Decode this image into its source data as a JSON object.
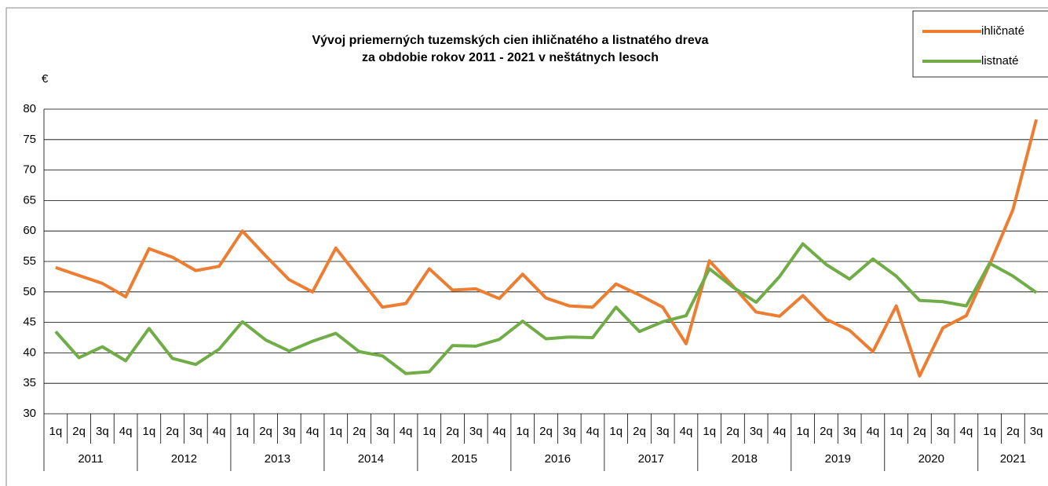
{
  "chart_data": {
    "type": "line",
    "title": [
      "Vývoj priemerných tuzemských cien ihličnatého a listnatého dreva",
      "za obdobie rokov 2011 - 2021 v neštátnych lesoch"
    ],
    "y_label": "€",
    "categories": [
      "1q",
      "2q",
      "3q",
      "4q",
      "1q",
      "2q",
      "3q",
      "4q",
      "1q",
      "2q",
      "3q",
      "4q",
      "1q",
      "2q",
      "3q",
      "4q",
      "1q",
      "2q",
      "3q",
      "4q",
      "1q",
      "2q",
      "3q",
      "4q",
      "1q",
      "2q",
      "3q",
      "4q",
      "1q",
      "2q",
      "3q",
      "4q",
      "1q",
      "2q",
      "3q",
      "4q",
      "1q",
      "2q",
      "3q",
      "4q",
      "1q",
      "2q",
      "3q"
    ],
    "years": [
      {
        "label": "2011",
        "quarters": 4
      },
      {
        "label": "2012",
        "quarters": 4
      },
      {
        "label": "2013",
        "quarters": 4
      },
      {
        "label": "2014",
        "quarters": 4
      },
      {
        "label": "2015",
        "quarters": 4
      },
      {
        "label": "2016",
        "quarters": 4
      },
      {
        "label": "2017",
        "quarters": 4
      },
      {
        "label": "2018",
        "quarters": 4
      },
      {
        "label": "2019",
        "quarters": 4
      },
      {
        "label": "2020",
        "quarters": 4
      },
      {
        "label": "2021",
        "quarters": 3
      }
    ],
    "series": [
      {
        "name": "ihličnaté",
        "color": "#ed7d31",
        "values": [
          54,
          52.7,
          51.4,
          49.2,
          57.1,
          55.7,
          53.5,
          54.2,
          60,
          55.9,
          52,
          50,
          57.2,
          52.3,
          47.5,
          48.1,
          53.8,
          50.3,
          50.5,
          48.9,
          52.9,
          49,
          47.7,
          47.5,
          51.3,
          49.5,
          47.5,
          41.5,
          55.1,
          51,
          46.7,
          46,
          49.4,
          45.5,
          43.7,
          40.2,
          47.7,
          36.2,
          44.1,
          46.1,
          54.5,
          63.5,
          78.3
        ]
      },
      {
        "name": "listnaté",
        "color": "#70ad47",
        "values": [
          43.5,
          39.2,
          41,
          38.7,
          44,
          39.1,
          38.1,
          40.6,
          45.1,
          42.1,
          40.3,
          41.9,
          43.2,
          40.2,
          39.5,
          36.6,
          36.9,
          41.2,
          41.1,
          42.2,
          45.2,
          42.3,
          42.6,
          42.5,
          47.5,
          43.5,
          45.1,
          46.1,
          53.8,
          50.8,
          48.3,
          52.5,
          57.9,
          54.5,
          52.1,
          55.4,
          52.6,
          48.6,
          48.4,
          47.7,
          54.7,
          52.6,
          49.9
        ]
      }
    ],
    "ylim": [
      30,
      80
    ],
    "yticks": [
      30,
      35,
      40,
      45,
      50,
      55,
      60,
      65,
      70,
      75,
      80
    ],
    "grid": true,
    "legend": "top-right"
  }
}
